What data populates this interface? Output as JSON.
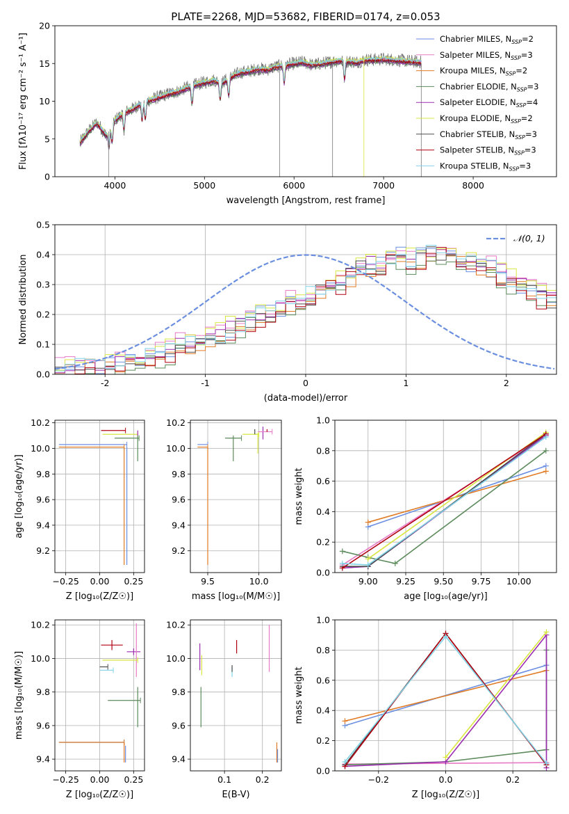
{
  "figure_title": "PLATE=2268, MJD=53682, FIBERID=0174, z=0.053",
  "colors": {
    "chabrier_miles": "#6a8ee0",
    "salpeter_miles": "#e879c6",
    "kroupa_miles": "#e07b24",
    "chabrier_elodie": "#5b8a5b",
    "salpeter_elodie": "#9b2bb0",
    "kroupa_elodie": "#d8e640",
    "chabrier_stelib": "#4a4a4a",
    "salpeter_stelib": "#b00010",
    "kroupa_stelib": "#7fd3e6",
    "data": "#777777",
    "normal_curve": "#6a8ee0"
  },
  "chart_data": [
    {
      "id": "spectrum",
      "type": "line",
      "title": "PLATE=2268, MJD=53682, FIBERID=0174, z=0.053",
      "xlabel": "wavelength [Angstrom, rest frame]",
      "ylabel": "Flux [fλ10⁻¹⁷ erg cm⁻² s⁻¹ A⁻¹]",
      "xlim": [
        3330,
        8930
      ],
      "ylim": [
        0,
        20
      ],
      "xticks": [
        4000,
        5000,
        6000,
        7000,
        8000
      ],
      "yticks": [
        0,
        5,
        10,
        15,
        20
      ],
      "x_range_data": [
        3610,
        7420
      ],
      "continuum": {
        "x": [
          3610,
          3700,
          3800,
          3900,
          4000,
          4100,
          4200,
          4300,
          4400,
          4500,
          4600,
          4700,
          4800,
          4900,
          5000,
          5100,
          5200,
          5300,
          5400,
          5500,
          5600,
          5700,
          5800,
          5900,
          6000,
          6100,
          6200,
          6300,
          6400,
          6500,
          6600,
          6700,
          6800,
          6900,
          7000,
          7100,
          7200,
          7300,
          7400
        ],
        "y": [
          4.5,
          6.0,
          7.2,
          5.5,
          7.5,
          8.5,
          9.0,
          9.8,
          10.2,
          10.6,
          11.0,
          11.3,
          11.8,
          12.2,
          12.5,
          12.8,
          12.5,
          13.3,
          13.8,
          14.0,
          14.3,
          14.2,
          14.6,
          14.8,
          15.0,
          15.2,
          14.8,
          15.0,
          15.2,
          15.4,
          15.3,
          15.2,
          15.5,
          15.5,
          15.6,
          15.5,
          15.4,
          15.3,
          15.2
        ]
      },
      "absorption_features": [
        3934,
        3969,
        4101,
        4304,
        4340,
        4861,
        5175,
        5270,
        5890,
        6563
      ],
      "series": [
        {
          "name": "Chabrier MILES, N$_{SSP}$=2",
          "label": "Chabrier MILES, N",
          "sub": "SSP",
          "suffix": "=2",
          "color_key": "chabrier_miles",
          "offset": 0.1
        },
        {
          "name": "Salpeter MILES, N$_{SSP}$=3",
          "label": "Salpeter MILES, N",
          "sub": "SSP",
          "suffix": "=3",
          "color_key": "salpeter_miles",
          "offset": 0.0
        },
        {
          "name": "Kroupa MILES, N$_{SSP}$=2",
          "label": "Kroupa MILES, N",
          "sub": "SSP",
          "suffix": "=2",
          "color_key": "kroupa_miles",
          "offset": -0.15
        },
        {
          "name": "Chabrier ELODIE, N$_{SSP}$=3",
          "label": "Chabrier ELODIE, N",
          "sub": "SSP",
          "suffix": "=3",
          "color_key": "chabrier_elodie",
          "offset": -0.4
        },
        {
          "name": "Salpeter ELODIE, N$_{SSP}$=4",
          "label": "Salpeter ELODIE, N",
          "sub": "SSP",
          "suffix": "=4",
          "color_key": "salpeter_elodie",
          "offset": -0.3
        },
        {
          "name": "Kroupa ELODIE, N$_{SSP}$=2",
          "label": "Kroupa ELODIE, N",
          "sub": "SSP",
          "suffix": "=2",
          "color_key": "kroupa_elodie",
          "offset": 0.2
        },
        {
          "name": "Chabrier STELIB, N$_{SSP}$=3",
          "label": "Chabrier STELIB, N",
          "sub": "SSP",
          "suffix": "=3",
          "color_key": "chabrier_stelib",
          "offset": -0.2
        },
        {
          "name": "Salpeter STELIB, N$_{SSP}$=3",
          "label": "Salpeter STELIB, N",
          "sub": "SSP",
          "suffix": "=3",
          "color_key": "salpeter_stelib",
          "offset": -0.1
        },
        {
          "name": "Kroupa STELIB, N$_{SSP}$=3",
          "label": "Kroupa STELIB, N",
          "sub": "SSP",
          "suffix": "=3",
          "color_key": "kroupa_stelib",
          "offset": 0.15
        }
      ]
    },
    {
      "id": "residuals",
      "type": "step",
      "xlabel": "(data-model)/error",
      "ylabel": "Normed distribution",
      "xlim": [
        -2.5,
        2.5
      ],
      "ylim": [
        0,
        0.5
      ],
      "xticks": [
        -2,
        -1,
        0,
        1,
        2
      ],
      "yticks": [
        0.0,
        0.1,
        0.2,
        0.3,
        0.4,
        0.5
      ],
      "grid": true,
      "legend": "top-right",
      "normal_label": "𝒩(0, 1)",
      "bin_edges_start": -2.5,
      "bin_width": 0.1,
      "hist_base": [
        0.01,
        0.015,
        0.02,
        0.02,
        0.025,
        0.03,
        0.035,
        0.04,
        0.05,
        0.06,
        0.07,
        0.08,
        0.09,
        0.1,
        0.11,
        0.12,
        0.13,
        0.15,
        0.16,
        0.18,
        0.2,
        0.21,
        0.22,
        0.24,
        0.25,
        0.26,
        0.28,
        0.3,
        0.31,
        0.33,
        0.35,
        0.36,
        0.37,
        0.39,
        0.4,
        0.38,
        0.39,
        0.4,
        0.41,
        0.4,
        0.38,
        0.37,
        0.36,
        0.35,
        0.33,
        0.31,
        0.3,
        0.28,
        0.26,
        0.25
      ],
      "hist_offsets": [
        0.0,
        0.02,
        -0.01,
        -0.02,
        0.01,
        0.015,
        0.0,
        -0.015,
        0.005
      ]
    },
    {
      "id": "z-vs-age",
      "type": "errorbar",
      "xlabel": "Z [log₁₀(Z/Z☉)]",
      "ylabel": "age  [log₁₀(age/yr)]",
      "xlim": [
        -0.33,
        0.33
      ],
      "ylim": [
        9.03,
        10.22
      ],
      "xticks": [
        -0.25,
        0.0,
        0.25
      ],
      "xticklabels": [
        "−0.25",
        "0.00",
        "0.25"
      ],
      "yticks": [
        9.2,
        9.4,
        9.6,
        9.8,
        10.0,
        10.2
      ],
      "grid": true,
      "points": [
        {
          "color_key": "chabrier_miles",
          "x": -0.05,
          "xerr": 0.25,
          "y": 10.03,
          "yerr": 0.0
        },
        {
          "color_key": "kroupa_miles",
          "x": -0.06,
          "xerr": 0.24,
          "y": 10.01,
          "yerr": 0.0
        },
        {
          "color_key": "chabrier_miles",
          "x": 0.2,
          "xerr": 0.0,
          "y": 9.55,
          "yerr": 0.46
        },
        {
          "color_key": "kroupa_miles",
          "x": 0.18,
          "xerr": 0.0,
          "y": 9.55,
          "yerr": 0.46
        },
        {
          "color_key": "salpeter_stelib",
          "x": 0.1,
          "xerr": 0.09,
          "y": 10.14,
          "yerr": 0.0
        },
        {
          "color_key": "kroupa_elodie",
          "x": 0.15,
          "xerr": 0.13,
          "y": 10.11,
          "yerr": 0.0
        },
        {
          "color_key": "chabrier_elodie",
          "x": 0.2,
          "xerr": 0.09,
          "y": 10.08,
          "yerr": 0.0
        },
        {
          "color_key": "chabrier_elodie",
          "x": 0.28,
          "xerr": 0.0,
          "y": 10.0,
          "yerr": 0.1
        },
        {
          "color_key": "salpeter_elodie",
          "x": 0.28,
          "xerr": 0.0,
          "y": 10.12,
          "yerr": 0.02
        }
      ]
    },
    {
      "id": "mass-vs-age",
      "type": "errorbar",
      "xlabel": "mass [log₁₀(M/M☉)]",
      "xlim": [
        9.33,
        10.22
      ],
      "ylim": [
        9.03,
        10.22
      ],
      "xticks": [
        9.5,
        10.0
      ],
      "xticklabels": [
        "9.5",
        "10.0"
      ],
      "yticks": [
        9.2,
        9.4,
        9.6,
        9.8,
        10.0,
        10.2
      ],
      "grid": true,
      "points": [
        {
          "color_key": "chabrier_miles",
          "x": 9.45,
          "xerr": 0.05,
          "y": 10.03,
          "yerr": 0.0
        },
        {
          "color_key": "kroupa_miles",
          "x": 9.45,
          "xerr": 0.05,
          "y": 10.01,
          "yerr": 0.0
        },
        {
          "color_key": "kroupa_miles",
          "x": 9.5,
          "xerr": 0.0,
          "y": 9.55,
          "yerr": 0.46
        },
        {
          "color_key": "chabrier_elodie",
          "x": 9.75,
          "xerr": 0.08,
          "y": 10.08,
          "yerr": 0.0
        },
        {
          "color_key": "chabrier_elodie",
          "x": 9.75,
          "xerr": 0.0,
          "y": 10.0,
          "yerr": 0.1
        },
        {
          "color_key": "kroupa_elodie",
          "x": 9.92,
          "xerr": 0.08,
          "y": 10.11,
          "yerr": 0.0
        },
        {
          "color_key": "kroupa_elodie",
          "x": 9.99,
          "xerr": 0.0,
          "y": 10.04,
          "yerr": 0.08
        },
        {
          "color_key": "salpeter_elodie",
          "x": 10.04,
          "xerr": 0.0,
          "y": 10.12,
          "yerr": 0.05
        },
        {
          "color_key": "salpeter_miles",
          "x": 10.06,
          "xerr": 0.07,
          "y": 10.13,
          "yerr": 0.0
        },
        {
          "color_key": "salpeter_stelib",
          "x": 10.08,
          "xerr": 0.0,
          "y": 10.14,
          "yerr": 0.01
        },
        {
          "color_key": "chabrier_stelib",
          "x": 9.96,
          "xerr": 0.0,
          "y": 10.13,
          "yerr": 0.02
        }
      ]
    },
    {
      "id": "age-vs-weight",
      "type": "line",
      "xlabel": "age  [log₁₀(age/yr)]",
      "ylabel": "mass weight",
      "xlim": [
        8.78,
        10.25
      ],
      "ylim": [
        0,
        1.0
      ],
      "xticks": [
        9.0,
        9.25,
        9.5,
        9.75,
        10.0
      ],
      "xticklabels": [
        "9.00",
        "9.25",
        "9.50",
        "9.75",
        "10.00"
      ],
      "yticks": [
        0.0,
        0.2,
        0.4,
        0.6,
        0.8,
        1.0
      ],
      "grid": true,
      "lines": [
        {
          "color_key": "chabrier_miles",
          "x": [
            9.0,
            10.18
          ],
          "y": [
            0.3,
            0.7
          ]
        },
        {
          "color_key": "kroupa_miles",
          "x": [
            9.0,
            10.18
          ],
          "y": [
            0.33,
            0.665
          ]
        },
        {
          "color_key": "salpeter_miles",
          "x": [
            8.83,
            10.18
          ],
          "y": [
            0.05,
            0.9
          ]
        },
        {
          "color_key": "chabrier_elodie",
          "x": [
            8.83,
            9.0,
            9.18,
            10.18
          ],
          "y": [
            0.14,
            0.1,
            0.06,
            0.8
          ]
        },
        {
          "color_key": "salpeter_elodie",
          "x": [
            8.83,
            9.0,
            10.18
          ],
          "y": [
            0.03,
            0.04,
            0.9
          ]
        },
        {
          "color_key": "kroupa_elodie",
          "x": [
            9.0,
            10.18
          ],
          "y": [
            0.09,
            0.92
          ]
        },
        {
          "color_key": "chabrier_stelib",
          "x": [
            8.83,
            9.0,
            10.18
          ],
          "y": [
            0.04,
            0.04,
            0.91
          ]
        },
        {
          "color_key": "salpeter_stelib",
          "x": [
            8.83,
            10.18
          ],
          "y": [
            0.03,
            0.91
          ]
        },
        {
          "color_key": "kroupa_stelib",
          "x": [
            8.83,
            9.0,
            10.18
          ],
          "y": [
            0.06,
            0.05,
            0.89
          ]
        }
      ]
    },
    {
      "id": "z-vs-mass",
      "type": "errorbar",
      "xlabel": "Z [log₁₀(Z/Z☉)]",
      "ylabel": "mass [log₁₀(M/M☉)]",
      "xlim": [
        -0.33,
        0.33
      ],
      "ylim": [
        9.33,
        10.23
      ],
      "xticks": [
        -0.25,
        0.0,
        0.25
      ],
      "xticklabels": [
        "−0.25",
        "0.00",
        "0.25"
      ],
      "yticks": [
        9.4,
        9.6,
        9.8,
        10.0,
        10.2
      ],
      "grid": true,
      "points": [
        {
          "color_key": "chabrier_miles",
          "x": -0.06,
          "xerr": 0.24,
          "y": 9.5,
          "yerr": 0.0
        },
        {
          "color_key": "kroupa_miles",
          "x": -0.06,
          "xerr": 0.24,
          "y": 9.5,
          "yerr": 0.0
        },
        {
          "color_key": "kroupa_miles",
          "x": 0.18,
          "xerr": 0.0,
          "y": 9.44,
          "yerr": 0.06
        },
        {
          "color_key": "chabrier_miles",
          "x": 0.19,
          "xerr": 0.0,
          "y": 9.43,
          "yerr": 0.05
        },
        {
          "color_key": "salpeter_stelib",
          "x": 0.09,
          "xerr": 0.08,
          "y": 10.08,
          "yerr": 0.03
        },
        {
          "color_key": "salpeter_elodie",
          "x": 0.25,
          "xerr": 0.05,
          "y": 10.04,
          "yerr": 0.02
        },
        {
          "color_key": "salpeter_miles",
          "x": 0.27,
          "xerr": 0.0,
          "y": 10.05,
          "yerr": 0.16
        },
        {
          "color_key": "kroupa_elodie",
          "x": 0.15,
          "xerr": 0.13,
          "y": 9.99,
          "yerr": 0.0
        },
        {
          "color_key": "chabrier_stelib",
          "x": 0.03,
          "xerr": 0.03,
          "y": 9.95,
          "yerr": 0.0
        },
        {
          "color_key": "kroupa_stelib",
          "x": 0.05,
          "xerr": 0.05,
          "y": 9.93,
          "yerr": 0.0
        },
        {
          "color_key": "chabrier_elodie",
          "x": 0.18,
          "xerr": 0.12,
          "y": 9.75,
          "yerr": 0.0
        },
        {
          "color_key": "chabrier_elodie",
          "x": 0.28,
          "xerr": 0.0,
          "y": 9.71,
          "yerr": 0.12
        }
      ]
    },
    {
      "id": "ebv-vs-mass",
      "type": "errorbar",
      "xlabel": "E(B-V)",
      "xlim": [
        0.01,
        0.25
      ],
      "ylim": [
        9.33,
        10.23
      ],
      "xticks": [
        0.1,
        0.2
      ],
      "xticklabels": [
        "0.1",
        "0.2"
      ],
      "yticks": [
        9.4,
        9.6,
        9.8,
        10.0,
        10.2
      ],
      "grid": true,
      "points": [
        {
          "color_key": "salpeter_elodie",
          "x": 0.035,
          "xerr": 0.0,
          "y": 10.01,
          "yerr": 0.08
        },
        {
          "color_key": "kroupa_elodie",
          "x": 0.04,
          "xerr": 0.0,
          "y": 9.96,
          "yerr": 0.06
        },
        {
          "color_key": "chabrier_elodie",
          "x": 0.038,
          "xerr": 0.0,
          "y": 9.71,
          "yerr": 0.12
        },
        {
          "color_key": "kroupa_stelib",
          "x": 0.12,
          "xerr": 0.0,
          "y": 9.92,
          "yerr": 0.03
        },
        {
          "color_key": "chabrier_stelib",
          "x": 0.12,
          "xerr": 0.0,
          "y": 9.94,
          "yerr": 0.02
        },
        {
          "color_key": "salpeter_stelib",
          "x": 0.132,
          "xerr": 0.0,
          "y": 10.07,
          "yerr": 0.04
        },
        {
          "color_key": "salpeter_miles",
          "x": 0.218,
          "xerr": 0.0,
          "y": 10.06,
          "yerr": 0.14
        },
        {
          "color_key": "kroupa_miles",
          "x": 0.238,
          "xerr": 0.0,
          "y": 9.44,
          "yerr": 0.06
        },
        {
          "color_key": "chabrier_miles",
          "x": 0.24,
          "xerr": 0.0,
          "y": 9.42,
          "yerr": 0.04
        }
      ]
    },
    {
      "id": "z-vs-weight",
      "type": "line",
      "xlabel": "Z [log₁₀(Z/Z☉)]",
      "ylabel": "mass weight",
      "xlim": [
        -0.33,
        0.33
      ],
      "ylim": [
        0,
        1.0
      ],
      "xticks": [
        -0.2,
        0.0,
        0.2
      ],
      "xticklabels": [
        "−0.2",
        "0.0",
        "0.2"
      ],
      "yticks": [
        0.0,
        0.2,
        0.4,
        0.6,
        0.8,
        1.0
      ],
      "grid": true,
      "lines": [
        {
          "color_key": "chabrier_miles",
          "x": [
            -0.3,
            0.3
          ],
          "y": [
            0.3,
            0.7
          ]
        },
        {
          "color_key": "kroupa_miles",
          "x": [
            -0.3,
            0.3
          ],
          "y": [
            0.33,
            0.665
          ]
        },
        {
          "color_key": "salpeter_miles",
          "x": [
            -0.3,
            0.3
          ],
          "y": [
            0.045,
            0.055
          ]
        },
        {
          "color_key": "chabrier_elodie",
          "x": [
            -0.3,
            0.0,
            0.3,
            0.3
          ],
          "y": [
            0.04,
            0.06,
            0.14,
            0.8
          ]
        },
        {
          "color_key": "salpeter_elodie",
          "x": [
            -0.3,
            0.0,
            0.3,
            0.3
          ],
          "y": [
            0.03,
            0.06,
            0.9,
            0.02
          ]
        },
        {
          "color_key": "kroupa_elodie",
          "x": [
            0.0,
            0.3
          ],
          "y": [
            0.09,
            0.92
          ]
        },
        {
          "color_key": "chabrier_stelib",
          "x": [
            -0.3,
            0.0,
            0.3
          ],
          "y": [
            0.04,
            0.91,
            0.04
          ]
        },
        {
          "color_key": "salpeter_stelib",
          "x": [
            -0.3,
            0.0,
            0.3
          ],
          "y": [
            0.03,
            0.91,
            0.04
          ]
        },
        {
          "color_key": "kroupa_stelib",
          "x": [
            -0.3,
            0.0,
            0.3
          ],
          "y": [
            0.06,
            0.89,
            0.05
          ]
        }
      ]
    }
  ]
}
